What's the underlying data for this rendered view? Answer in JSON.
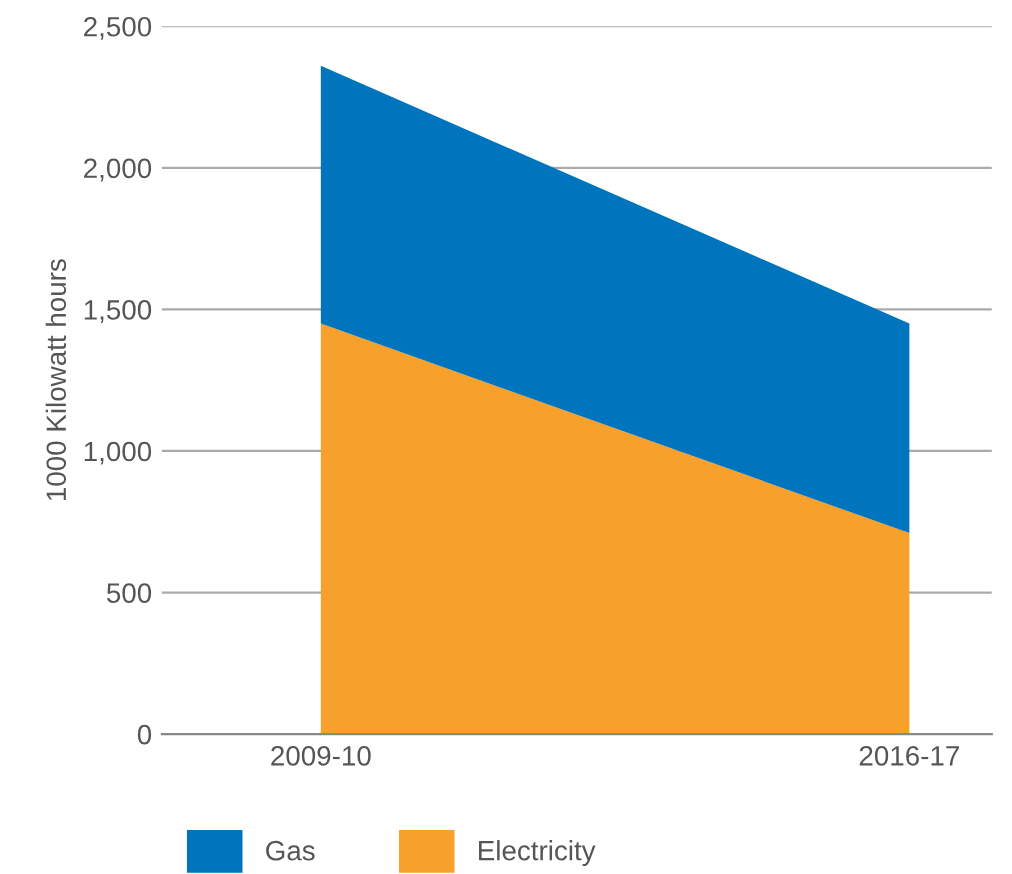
{
  "chart_data": {
    "type": "area",
    "stacked": true,
    "ylabel": "1000 Kilowatt hours",
    "categories": [
      "2009-10",
      "2016-17"
    ],
    "series": [
      {
        "name": "Electricity",
        "color": "#f7a12c",
        "values": [
          1450,
          710
        ]
      },
      {
        "name": "Gas",
        "color": "#0074bc",
        "values": [
          910,
          740
        ]
      }
    ],
    "ylim": [
      0,
      2500
    ],
    "yticks": [
      {
        "value": 0,
        "label": "0"
      },
      {
        "value": 500,
        "label": "500"
      },
      {
        "value": 1000,
        "label": "1,000"
      },
      {
        "value": 1500,
        "label": "1,500"
      },
      {
        "value": 2000,
        "label": "2,000"
      },
      {
        "value": 2500,
        "label": "2,500"
      }
    ],
    "grid": "y",
    "legend": "bottom"
  }
}
